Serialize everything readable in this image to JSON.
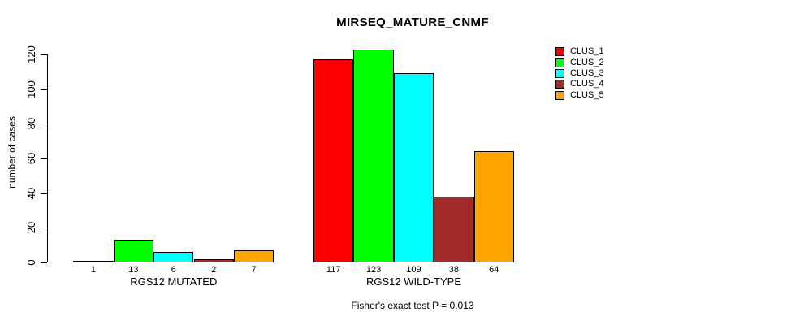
{
  "chart_data": {
    "type": "bar",
    "title": "MIRSEQ_MATURE_CNMF",
    "ylabel": "number of cases",
    "xlabel": "",
    "ylim": [
      0,
      120
    ],
    "yticks": [
      0,
      20,
      40,
      60,
      80,
      100,
      120
    ],
    "grid": false,
    "legend_position": "top-right",
    "categories": [
      "RGS12 MUTATED",
      "RGS12 WILD-TYPE"
    ],
    "series": [
      {
        "name": "CLUS_1",
        "color": "#FF0000",
        "values": [
          1,
          117
        ]
      },
      {
        "name": "CLUS_2",
        "color": "#00FF00",
        "values": [
          13,
          123
        ]
      },
      {
        "name": "CLUS_3",
        "color": "#00FFFF",
        "values": [
          6,
          109
        ]
      },
      {
        "name": "CLUS_4",
        "color": "#A52A2A",
        "values": [
          2,
          38
        ]
      },
      {
        "name": "CLUS_5",
        "color": "#FFA500",
        "values": [
          7,
          64
        ]
      }
    ],
    "bar_value_labels_shown": true,
    "annotation": "Fisher's exact test P = 0.013",
    "axis_color": "#000000",
    "background_color": "#FFFFFF"
  }
}
